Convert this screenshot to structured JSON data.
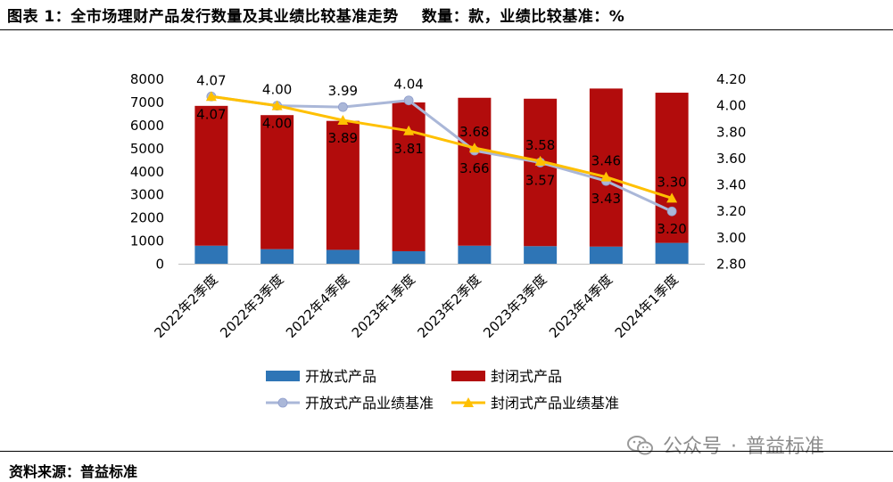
{
  "header": {
    "title": "图表 1：全市场理财产品发行数量及其业绩比较基准走势",
    "unit_note": "数量：款，业绩比较基准：%"
  },
  "footer": {
    "source": "资料来源：普益标准"
  },
  "watermark": {
    "text1": "公众号",
    "separator": "·",
    "text2": "普益标准",
    "icon": "wechat-icon"
  },
  "chart_data": {
    "type": "bar",
    "categories": [
      "2022年2季度",
      "2022年3季度",
      "2022年4季度",
      "2023年1季度",
      "2023年2季度",
      "2023年3季度",
      "2023年4季度",
      "2024年1季度"
    ],
    "series": [
      {
        "name": "开放式产品",
        "type": "bar",
        "stack": "count",
        "axis": "left",
        "color": "#2e75b6",
        "values": [
          800,
          650,
          620,
          560,
          800,
          780,
          760,
          920
        ]
      },
      {
        "name": "封闭式产品",
        "type": "bar",
        "stack": "count",
        "axis": "left",
        "color": "#b20c0c",
        "values": [
          6050,
          5800,
          5580,
          6440,
          6400,
          6380,
          6840,
          6500
        ]
      },
      {
        "name": "开放式产品业绩基准",
        "type": "line",
        "axis": "right",
        "color": "#aab7d8",
        "marker": "circle",
        "values": [
          4.07,
          4.0,
          3.99,
          4.04,
          3.66,
          3.57,
          3.43,
          3.2
        ],
        "labels": [
          "4.07",
          "4.00",
          "3.99",
          "4.04",
          "3.66",
          "3.57",
          "3.43",
          "3.20"
        ]
      },
      {
        "name": "封闭式产品业绩基准",
        "type": "line",
        "axis": "right",
        "color": "#ffc000",
        "marker": "triangle",
        "values": [
          4.07,
          4.0,
          3.89,
          3.81,
          3.68,
          3.58,
          3.46,
          3.3
        ],
        "labels": [
          "4.07",
          "4.00",
          "3.89",
          "3.81",
          "3.68",
          "3.58",
          "3.46",
          "3.30"
        ]
      }
    ],
    "left_axis": {
      "min": 0,
      "max": 8000,
      "step": 1000,
      "ticks": [
        "0",
        "1000",
        "2000",
        "3000",
        "4000",
        "5000",
        "6000",
        "7000",
        "8000"
      ]
    },
    "right_axis": {
      "min": 2.8,
      "max": 4.2,
      "step": 0.2,
      "ticks": [
        "2.80",
        "3.00",
        "3.20",
        "3.40",
        "3.60",
        "3.80",
        "4.00",
        "4.20"
      ]
    },
    "grid": false,
    "legend_position": "bottom"
  }
}
